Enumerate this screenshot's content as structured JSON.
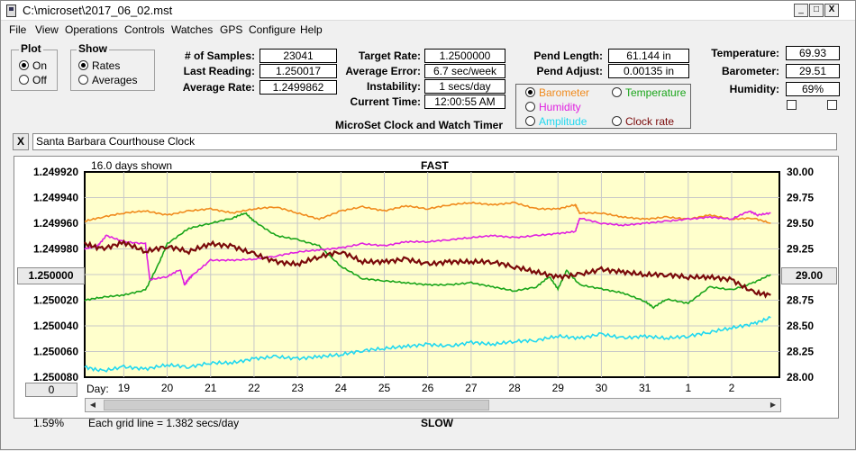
{
  "window": {
    "title": "C:\\microset\\2017_06_02.mst",
    "min": "_",
    "max": "□",
    "close": "X"
  },
  "menu": [
    "File",
    "View",
    "Operations",
    "Controls",
    "Watches",
    "GPS",
    "Configure",
    "Help"
  ],
  "plot": {
    "label": "Plot",
    "on": "On",
    "off": "Off",
    "selected": "On"
  },
  "show": {
    "label": "Show",
    "rates": "Rates",
    "averages": "Averages",
    "selected": "Rates"
  },
  "stats": {
    "samples_label": "# of Samples:",
    "samples": "23041",
    "last_label": "Last Reading:",
    "last": "1.250017",
    "avg_label": "Average Rate:",
    "avg": "1.2499862",
    "target_label": "Target Rate:",
    "target": "1.2500000",
    "avgerr_label": "Average Error:",
    "avgerr": "6.7 sec/week",
    "instab_label": "Instability:",
    "instab": "1 secs/day",
    "time_label": "Current Time:",
    "time": "12:00:55 AM",
    "pendlen_label": "Pend Length:",
    "pendlen": "61.144 in",
    "pendadj_label": "Pend Adjust:",
    "pendadj": "0.00135 in",
    "temp_label": "Temperature:",
    "temp": "69.93",
    "baro_label": "Barometer:",
    "baro": "29.51",
    "hum_label": "Humidity:",
    "hum": "69%"
  },
  "app_caption": "MicroSet Clock and Watch Timer",
  "series_options": [
    {
      "label": "Barometer",
      "color": "#f08a1c",
      "selected": true
    },
    {
      "label": "Temperature",
      "color": "#1aa51a",
      "selected": false
    },
    {
      "label": "Humidity",
      "color": "#e020e0",
      "selected": false
    },
    {
      "label": "Amplitude",
      "color": "#20d8f0",
      "selected": false
    },
    {
      "label": "Clock rate",
      "color": "#7a0a0a",
      "selected": false
    }
  ],
  "clock_name": "Santa Barbara Courthouse Clock",
  "clear_btn": "X",
  "plot_info": {
    "days_shown": "16.0 days shown",
    "fast": "FAST",
    "slow": "SLOW",
    "grid_note": "Each grid line = 1.382 secs/day",
    "percent": "1.59%",
    "day_label": "Day:",
    "center_btn": "1.250000",
    "right_btn": "29.00",
    "zero_btn": "0"
  },
  "chart_data": {
    "type": "line",
    "background": "#ffffcc",
    "x_ticks": [
      "19",
      "20",
      "21",
      "22",
      "23",
      "24",
      "25",
      "26",
      "27",
      "28",
      "29",
      "30",
      "31",
      "1",
      "2"
    ],
    "y_left_ticks": [
      "1.249920",
      "1.249940",
      "1.249960",
      "1.249980",
      "1.250000",
      "1.250020",
      "1.250040",
      "1.250060",
      "1.250080"
    ],
    "y_right_ticks": [
      "30.00",
      "29.75",
      "29.50",
      "29.25",
      "29.00",
      "28.75",
      "28.50",
      "28.25",
      "28.00"
    ],
    "ylim_left": [
      1.24992,
      1.25008
    ],
    "ylim_right": [
      28.0,
      30.0
    ],
    "xlim": [
      18.1,
      34.1
    ],
    "series": [
      {
        "name": "Barometer",
        "color": "#f08a1c",
        "x": [
          18.1,
          18.5,
          19.0,
          19.5,
          20.0,
          20.5,
          21.0,
          21.5,
          22.0,
          22.5,
          23.0,
          23.5,
          24.0,
          24.5,
          25.0,
          25.5,
          26.0,
          26.5,
          27.0,
          27.5,
          28.0,
          28.5,
          29.0,
          29.4,
          29.5,
          30.0,
          30.5,
          31.0,
          31.5,
          32.0,
          32.5,
          33.0,
          33.5,
          33.9
        ],
        "y": [
          29.52,
          29.56,
          29.6,
          29.62,
          29.58,
          29.62,
          29.64,
          29.6,
          29.64,
          29.66,
          29.6,
          29.54,
          29.62,
          29.66,
          29.62,
          29.67,
          29.64,
          29.68,
          29.7,
          29.68,
          29.7,
          29.64,
          29.64,
          29.68,
          29.6,
          29.6,
          29.56,
          29.54,
          29.56,
          29.54,
          29.58,
          29.54,
          29.55,
          29.5
        ]
      },
      {
        "name": "Temperature",
        "color": "#1aa51a",
        "x": [
          18.1,
          18.5,
          19.0,
          19.5,
          19.8,
          20.0,
          20.5,
          21.0,
          21.5,
          21.8,
          22.0,
          22.5,
          23.0,
          23.5,
          24.0,
          24.5,
          25.0,
          25.5,
          26.0,
          26.5,
          27.0,
          27.5,
          28.0,
          28.5,
          28.8,
          29.0,
          29.2,
          29.5,
          30.0,
          30.5,
          31.0,
          31.2,
          31.5,
          32.0,
          32.5,
          33.0,
          33.5,
          33.9
        ],
        "y": [
          28.75,
          28.78,
          28.8,
          28.85,
          29.1,
          29.3,
          29.45,
          29.5,
          29.55,
          29.6,
          29.52,
          29.38,
          29.34,
          29.28,
          29.08,
          28.96,
          28.94,
          28.92,
          28.9,
          28.9,
          28.92,
          28.88,
          28.84,
          28.88,
          28.98,
          28.86,
          29.04,
          28.9,
          28.86,
          28.82,
          28.74,
          28.68,
          28.76,
          28.72,
          28.88,
          28.85,
          28.92,
          29.0
        ]
      },
      {
        "name": "Humidity",
        "color": "#e020e0",
        "x": [
          18.1,
          18.4,
          18.6,
          19.0,
          19.5,
          19.6,
          20.0,
          20.3,
          20.4,
          20.5,
          20.6,
          21.0,
          21.5,
          22.0,
          22.5,
          23.0,
          23.5,
          24.0,
          24.5,
          25.0,
          25.5,
          26.0,
          26.5,
          27.0,
          27.5,
          28.0,
          28.5,
          29.0,
          29.4,
          29.5,
          30.0,
          30.5,
          31.0,
          31.5,
          32.0,
          32.5,
          33.0,
          33.4,
          33.6,
          33.9
        ],
        "y": [
          29.25,
          29.28,
          29.38,
          29.32,
          29.3,
          28.95,
          28.98,
          29.05,
          28.9,
          28.96,
          29.0,
          29.14,
          29.14,
          29.15,
          29.18,
          29.22,
          29.24,
          29.26,
          29.3,
          29.28,
          29.32,
          29.32,
          29.34,
          29.36,
          29.38,
          29.36,
          29.38,
          29.4,
          29.42,
          29.55,
          29.5,
          29.48,
          29.5,
          29.52,
          29.54,
          29.56,
          29.54,
          29.62,
          29.58,
          29.6
        ]
      },
      {
        "name": "Amplitude",
        "color": "#20d8f0",
        "x": [
          18.1,
          18.5,
          19.0,
          19.5,
          20.0,
          20.5,
          21.0,
          21.5,
          22.0,
          22.5,
          23.0,
          23.5,
          24.0,
          24.5,
          25.0,
          25.5,
          26.0,
          26.5,
          27.0,
          27.5,
          28.0,
          28.5,
          29.0,
          29.5,
          30.0,
          30.5,
          31.0,
          31.5,
          32.0,
          32.5,
          33.0,
          33.5,
          33.9
        ],
        "y": [
          28.1,
          28.06,
          28.1,
          28.08,
          28.12,
          28.1,
          28.14,
          28.14,
          28.18,
          28.2,
          28.18,
          28.2,
          28.22,
          28.26,
          28.28,
          28.3,
          28.32,
          28.3,
          28.34,
          28.32,
          28.35,
          28.36,
          28.4,
          28.38,
          28.42,
          28.38,
          28.4,
          28.38,
          28.4,
          28.44,
          28.48,
          28.52,
          28.58
        ]
      },
      {
        "name": "Clock rate",
        "color": "#7a0a0a",
        "x": [
          18.1,
          18.5,
          19.0,
          19.5,
          20.0,
          20.5,
          21.0,
          21.5,
          22.0,
          22.5,
          23.0,
          23.5,
          24.0,
          24.5,
          25.0,
          25.5,
          26.0,
          26.5,
          27.0,
          27.5,
          28.0,
          28.5,
          29.0,
          29.5,
          30.0,
          30.5,
          31.0,
          31.5,
          32.0,
          32.5,
          33.0,
          33.5,
          33.9
        ],
        "y": [
          1.249976,
          1.24998,
          1.249975,
          1.249982,
          1.249978,
          1.249982,
          1.249976,
          1.249978,
          1.249984,
          1.24999,
          1.249992,
          1.249986,
          1.249982,
          1.24999,
          1.24999,
          1.249988,
          1.249992,
          1.24999,
          1.24999,
          1.24999,
          1.249994,
          1.249998,
          1.250002,
          1.25,
          1.249996,
          1.249998,
          1.25,
          1.25,
          1.250002,
          1.250002,
          1.250004,
          1.250014,
          1.250016
        ]
      }
    ]
  }
}
